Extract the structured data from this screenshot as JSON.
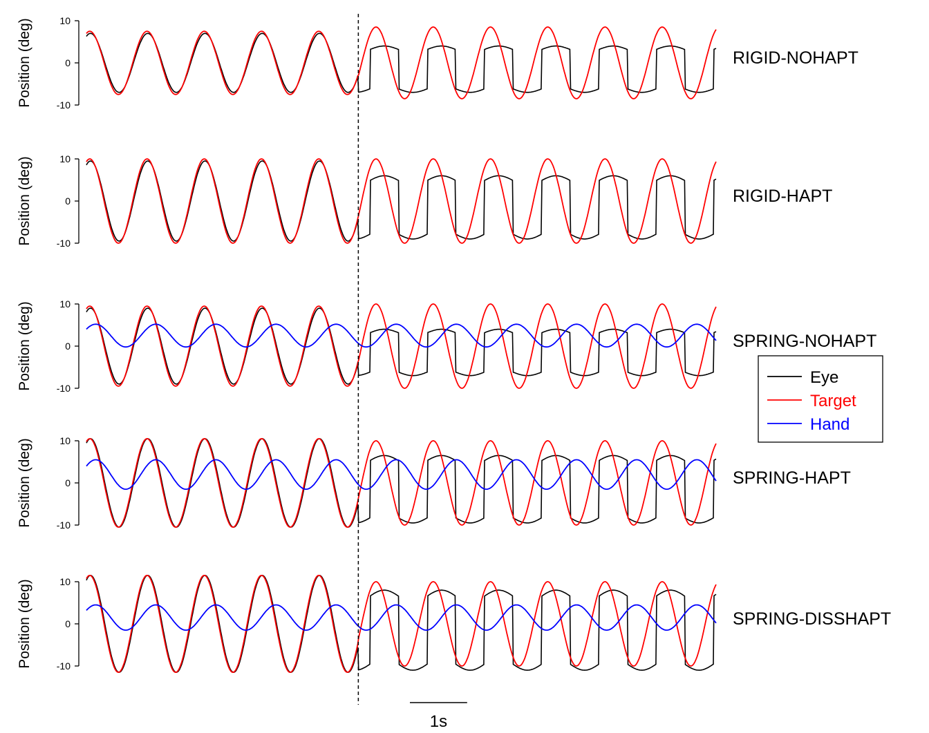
{
  "chart_data": {
    "type": "line",
    "panels": [
      {
        "label": "RIGID-NOHAPT",
        "ylabel": "Position (deg)",
        "yticks": [
          "10",
          "0",
          "-10"
        ],
        "ylim": [
          -10,
          10
        ],
        "series": [
          {
            "name": "Eye",
            "color": "#000000",
            "amp_pre": 7,
            "amp_post": 5.5,
            "saccadic_after_switch": true
          },
          {
            "name": "Target",
            "color": "#ff0000",
            "amp_pre": 7.5,
            "amp_post": 8.5
          }
        ]
      },
      {
        "label": "RIGID-HAPT",
        "ylabel": "Position (deg)",
        "yticks": [
          "10",
          "0",
          "-10"
        ],
        "ylim": [
          -10,
          10
        ],
        "series": [
          {
            "name": "Eye",
            "color": "#000000",
            "amp_pre": 9.5,
            "amp_post": 7.5,
            "saccadic_after_switch": true
          },
          {
            "name": "Target",
            "color": "#ff0000",
            "amp_pre": 10,
            "amp_post": 10
          }
        ]
      },
      {
        "label": "SPRING-NOHAPT",
        "ylabel": "Position (deg)",
        "yticks": [
          "10",
          "0",
          "-10"
        ],
        "ylim": [
          -10,
          10
        ],
        "series": [
          {
            "name": "Eye",
            "color": "#000000",
            "amp_pre": 9,
            "amp_post": 5.5,
            "saccadic_after_switch": true
          },
          {
            "name": "Target",
            "color": "#ff0000",
            "amp_pre": 9.5,
            "amp_post": 10
          },
          {
            "name": "Hand",
            "color": "#0000ff",
            "offset": 2.5,
            "amp": 2.7
          }
        ]
      },
      {
        "label": "SPRING-HAPT",
        "ylabel": "Position (deg)",
        "yticks": [
          "10",
          "0",
          "-10"
        ],
        "ylim": [
          -10,
          10
        ],
        "series": [
          {
            "name": "Eye",
            "color": "#000000",
            "amp_pre": 10.5,
            "amp_post": 8,
            "saccadic_after_switch": true
          },
          {
            "name": "Target",
            "color": "#ff0000",
            "amp_pre": 10.5,
            "amp_post": 10
          },
          {
            "name": "Hand",
            "color": "#0000ff",
            "offset": 2,
            "amp": 3.5
          }
        ]
      },
      {
        "label": "SPRING-DISSHAPT",
        "ylabel": "Position (deg)",
        "yticks": [
          "10",
          "0",
          "-10"
        ],
        "ylim": [
          -10,
          10
        ],
        "series": [
          {
            "name": "Eye",
            "color": "#000000",
            "amp_pre": 11.5,
            "amp_post": 9.5,
            "saccadic_after_switch": true
          },
          {
            "name": "Target",
            "color": "#ff0000",
            "amp_pre": 11.5,
            "amp_post": 10
          },
          {
            "name": "Hand",
            "color": "#0000ff",
            "offset": 1.5,
            "amp": 3
          }
        ]
      }
    ],
    "legend": {
      "placement": "right",
      "entries": [
        {
          "label": "Eye",
          "color": "#000000"
        },
        {
          "label": "Target",
          "color": "#ff0000"
        },
        {
          "label": "Hand",
          "color": "#0000ff"
        }
      ]
    },
    "scale_bar": {
      "label": "1s",
      "seconds": 1
    },
    "duration_s": 11,
    "target_period_s": 1.0,
    "switch_time_s": 4.75,
    "switch_marker": "dashed vertical line"
  }
}
